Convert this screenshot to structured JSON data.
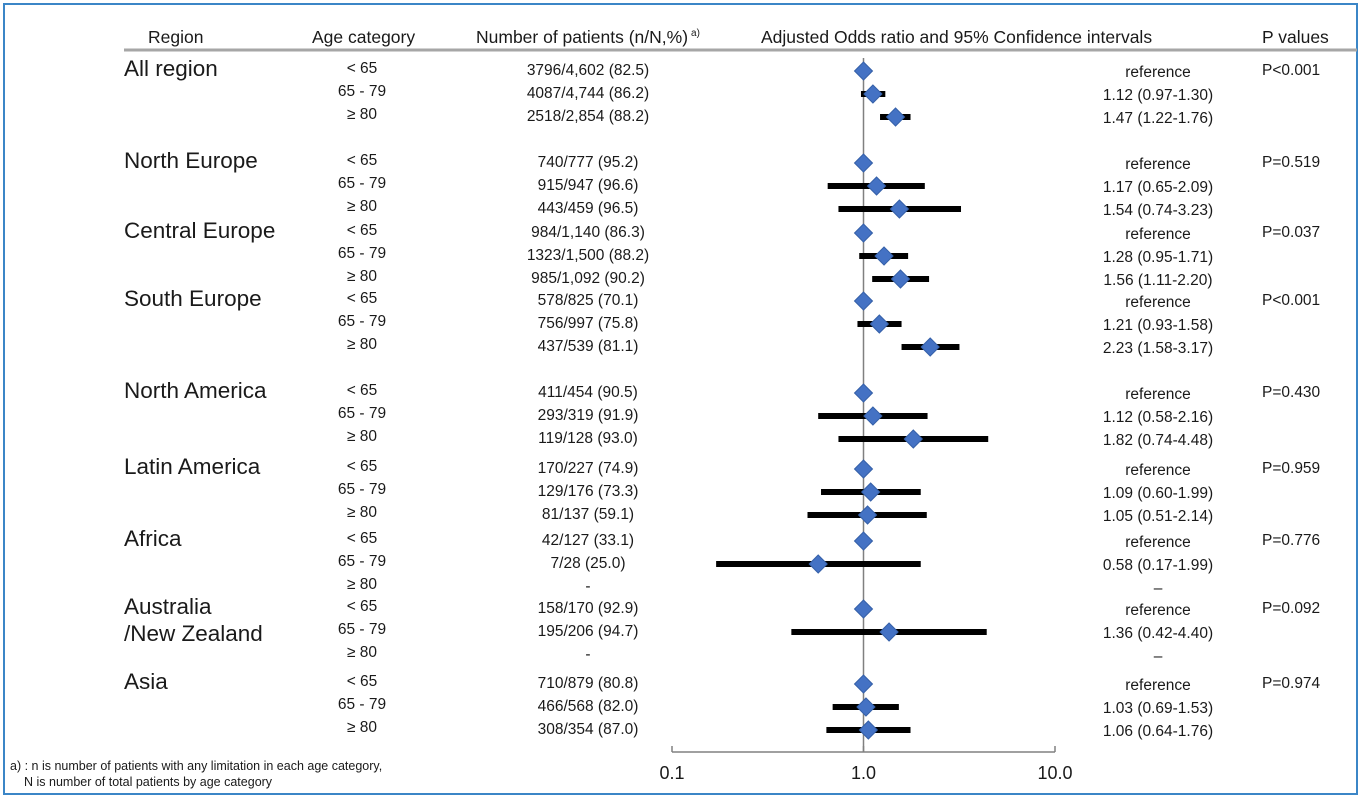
{
  "headers": {
    "region": "Region",
    "age": "Age category",
    "patients": "Number of patients (n/N,%)",
    "patients_sup": "a)",
    "or": "Adjusted Odds ratio and 95% Confidence intervals",
    "p": "P values"
  },
  "regions": [
    {
      "name": [
        "All region"
      ],
      "p": "P<0.001",
      "rows": [
        {
          "age": "< 65",
          "count": "3796/4,602 (82.5)",
          "or_text": "reference",
          "or": 1.0,
          "lo": 1.0,
          "hi": 1.0
        },
        {
          "age": "65 - 79",
          "count": "4087/4,744 (86.2)",
          "or_text": "1.12 (0.97-1.30)",
          "or": 1.12,
          "lo": 0.97,
          "hi": 1.3
        },
        {
          "age": "≥ 80",
          "count": "2518/2,854 (88.2)",
          "or_text": "1.47 (1.22-1.76)",
          "or": 1.47,
          "lo": 1.22,
          "hi": 1.76
        }
      ]
    },
    {
      "name": [
        "North Europe"
      ],
      "p": "P=0.519",
      "rows": [
        {
          "age": "< 65",
          "count": "740/777 (95.2)",
          "or_text": "reference",
          "or": 1.0,
          "lo": 1.0,
          "hi": 1.0
        },
        {
          "age": "65 - 79",
          "count": "915/947 (96.6)",
          "or_text": "1.17 (0.65-2.09)",
          "or": 1.17,
          "lo": 0.65,
          "hi": 2.09
        },
        {
          "age": "≥ 80",
          "count": "443/459 (96.5)",
          "or_text": "1.54 (0.74-3.23)",
          "or": 1.54,
          "lo": 0.74,
          "hi": 3.23
        }
      ]
    },
    {
      "name": [
        "Central Europe"
      ],
      "p": "P=0.037",
      "rows": [
        {
          "age": "< 65",
          "count": "984/1,140 (86.3)",
          "or_text": "reference",
          "or": 1.0,
          "lo": 1.0,
          "hi": 1.0
        },
        {
          "age": "65 - 79",
          "count": "1323/1,500 (88.2)",
          "or_text": "1.28 (0.95-1.71)",
          "or": 1.28,
          "lo": 0.95,
          "hi": 1.71
        },
        {
          "age": "≥ 80",
          "count": "985/1,092 (90.2)",
          "or_text": "1.56 (1.11-2.20)",
          "or": 1.56,
          "lo": 1.11,
          "hi": 2.2
        }
      ]
    },
    {
      "name": [
        "South Europe"
      ],
      "p": "P<0.001",
      "rows": [
        {
          "age": "< 65",
          "count": "578/825 (70.1)",
          "or_text": "reference",
          "or": 1.0,
          "lo": 1.0,
          "hi": 1.0
        },
        {
          "age": "65 - 79",
          "count": "756/997 (75.8)",
          "or_text": "1.21 (0.93-1.58)",
          "or": 1.21,
          "lo": 0.93,
          "hi": 1.58
        },
        {
          "age": "≥ 80",
          "count": "437/539 (81.1)",
          "or_text": "2.23 (1.58-3.17)",
          "or": 2.23,
          "lo": 1.58,
          "hi": 3.17
        }
      ]
    },
    {
      "name": [
        "North America"
      ],
      "p": "P=0.430",
      "rows": [
        {
          "age": "< 65",
          "count": "411/454 (90.5)",
          "or_text": "reference",
          "or": 1.0,
          "lo": 1.0,
          "hi": 1.0
        },
        {
          "age": "65 - 79",
          "count": "293/319 (91.9)",
          "or_text": "1.12 (0.58-2.16)",
          "or": 1.12,
          "lo": 0.58,
          "hi": 2.16
        },
        {
          "age": "≥ 80",
          "count": "119/128 (93.0)",
          "or_text": "1.82 (0.74-4.48)",
          "or": 1.82,
          "lo": 0.74,
          "hi": 4.48
        }
      ]
    },
    {
      "name": [
        "Latin America"
      ],
      "p": "P=0.959",
      "rows": [
        {
          "age": "< 65",
          "count": "170/227 (74.9)",
          "or_text": "reference",
          "or": 1.0,
          "lo": 1.0,
          "hi": 1.0
        },
        {
          "age": "65 - 79",
          "count": "129/176 (73.3)",
          "or_text": "1.09 (0.60-1.99)",
          "or": 1.09,
          "lo": 0.6,
          "hi": 1.99
        },
        {
          "age": "≥ 80",
          "count": "81/137 (59.1)",
          "or_text": "1.05 (0.51-2.14)",
          "or": 1.05,
          "lo": 0.51,
          "hi": 2.14
        }
      ]
    },
    {
      "name": [
        "Africa"
      ],
      "p": "P=0.776",
      "rows": [
        {
          "age": "< 65",
          "count": "42/127 (33.1)",
          "or_text": "reference",
          "or": 1.0,
          "lo": 1.0,
          "hi": 1.0
        },
        {
          "age": "65 - 79",
          "count": "7/28 (25.0)",
          "or_text": "0.58 (0.17-1.99)",
          "or": 0.58,
          "lo": 0.17,
          "hi": 1.99
        },
        {
          "age": "≥ 80",
          "count": "-",
          "or_text": "–",
          "or": null,
          "lo": null,
          "hi": null
        }
      ]
    },
    {
      "name": [
        "Australia",
        "/New Zealand"
      ],
      "p": "P=0.092",
      "rows": [
        {
          "age": "< 65",
          "count": "158/170 (92.9)",
          "or_text": "reference",
          "or": 1.0,
          "lo": 1.0,
          "hi": 1.0
        },
        {
          "age": "65 - 79",
          "count": "195/206 (94.7)",
          "or_text": "1.36 (0.42-4.40)",
          "or": 1.36,
          "lo": 0.42,
          "hi": 4.4
        },
        {
          "age": "≥ 80",
          "count": "-",
          "or_text": "–",
          "or": null,
          "lo": null,
          "hi": null
        }
      ]
    },
    {
      "name": [
        "Asia"
      ],
      "p": "P=0.974",
      "rows": [
        {
          "age": "< 65",
          "count": "710/879 (80.8)",
          "or_text": "reference",
          "or": 1.0,
          "lo": 1.0,
          "hi": 1.0
        },
        {
          "age": "65 - 79",
          "count": "466/568 (82.0)",
          "or_text": "1.03 (0.69-1.53)",
          "or": 1.03,
          "lo": 0.69,
          "hi": 1.53
        },
        {
          "age": "≥ 80",
          "count": "308/354 (87.0)",
          "or_text": "1.06 (0.64-1.76)",
          "or": 1.06,
          "lo": 0.64,
          "hi": 1.76
        }
      ]
    }
  ],
  "x_axis": {
    "ticks": [
      "0.1",
      "1.0",
      "10.0"
    ],
    "values": [
      0.1,
      1.0,
      10.0
    ],
    "scale": "log"
  },
  "footnote": [
    "a) : n is number of patients with any limitation in each age category,",
    "N is number of total patients by age category"
  ],
  "colors": {
    "marker": "#4472c4",
    "ci_line": "#000000",
    "frame": "#3b86c7",
    "rule": "#a6a6a6",
    "ref_line": "#808080"
  },
  "chart_data": {
    "type": "forest",
    "xlabel": "",
    "x_scale": "log",
    "xlim": [
      0.1,
      10.0
    ],
    "reference_line": 1.0,
    "marker": "diamond",
    "series": [
      {
        "name": "All region",
        "categories": [
          "< 65",
          "65 - 79",
          "≥ 80"
        ],
        "values": [
          1.0,
          1.12,
          1.47
        ],
        "ci_low": [
          1.0,
          0.97,
          1.22
        ],
        "ci_high": [
          1.0,
          1.3,
          1.76
        ]
      },
      {
        "name": "North Europe",
        "categories": [
          "< 65",
          "65 - 79",
          "≥ 80"
        ],
        "values": [
          1.0,
          1.17,
          1.54
        ],
        "ci_low": [
          1.0,
          0.65,
          0.74
        ],
        "ci_high": [
          1.0,
          2.09,
          3.23
        ]
      },
      {
        "name": "Central Europe",
        "categories": [
          "< 65",
          "65 - 79",
          "≥ 80"
        ],
        "values": [
          1.0,
          1.28,
          1.56
        ],
        "ci_low": [
          1.0,
          0.95,
          1.11
        ],
        "ci_high": [
          1.0,
          1.71,
          2.2
        ]
      },
      {
        "name": "South Europe",
        "categories": [
          "< 65",
          "65 - 79",
          "≥ 80"
        ],
        "values": [
          1.0,
          1.21,
          2.23
        ],
        "ci_low": [
          1.0,
          0.93,
          1.58
        ],
        "ci_high": [
          1.0,
          1.58,
          3.17
        ]
      },
      {
        "name": "North America",
        "categories": [
          "< 65",
          "65 - 79",
          "≥ 80"
        ],
        "values": [
          1.0,
          1.12,
          1.82
        ],
        "ci_low": [
          1.0,
          0.58,
          0.74
        ],
        "ci_high": [
          1.0,
          2.16,
          4.48
        ]
      },
      {
        "name": "Latin America",
        "categories": [
          "< 65",
          "65 - 79",
          "≥ 80"
        ],
        "values": [
          1.0,
          1.09,
          1.05
        ],
        "ci_low": [
          1.0,
          0.6,
          0.51
        ],
        "ci_high": [
          1.0,
          1.99,
          2.14
        ]
      },
      {
        "name": "Africa",
        "categories": [
          "< 65",
          "65 - 79",
          "≥ 80"
        ],
        "values": [
          1.0,
          0.58,
          null
        ],
        "ci_low": [
          1.0,
          0.17,
          null
        ],
        "ci_high": [
          1.0,
          1.99,
          null
        ]
      },
      {
        "name": "Australia /New Zealand",
        "categories": [
          "< 65",
          "65 - 79",
          "≥ 80"
        ],
        "values": [
          1.0,
          1.36,
          null
        ],
        "ci_low": [
          1.0,
          0.42,
          null
        ],
        "ci_high": [
          1.0,
          4.4,
          null
        ]
      },
      {
        "name": "Asia",
        "categories": [
          "< 65",
          "65 - 79",
          "≥ 80"
        ],
        "values": [
          1.0,
          1.03,
          1.06
        ],
        "ci_low": [
          1.0,
          0.69,
          0.64
        ],
        "ci_high": [
          1.0,
          1.53,
          1.76
        ]
      }
    ]
  }
}
